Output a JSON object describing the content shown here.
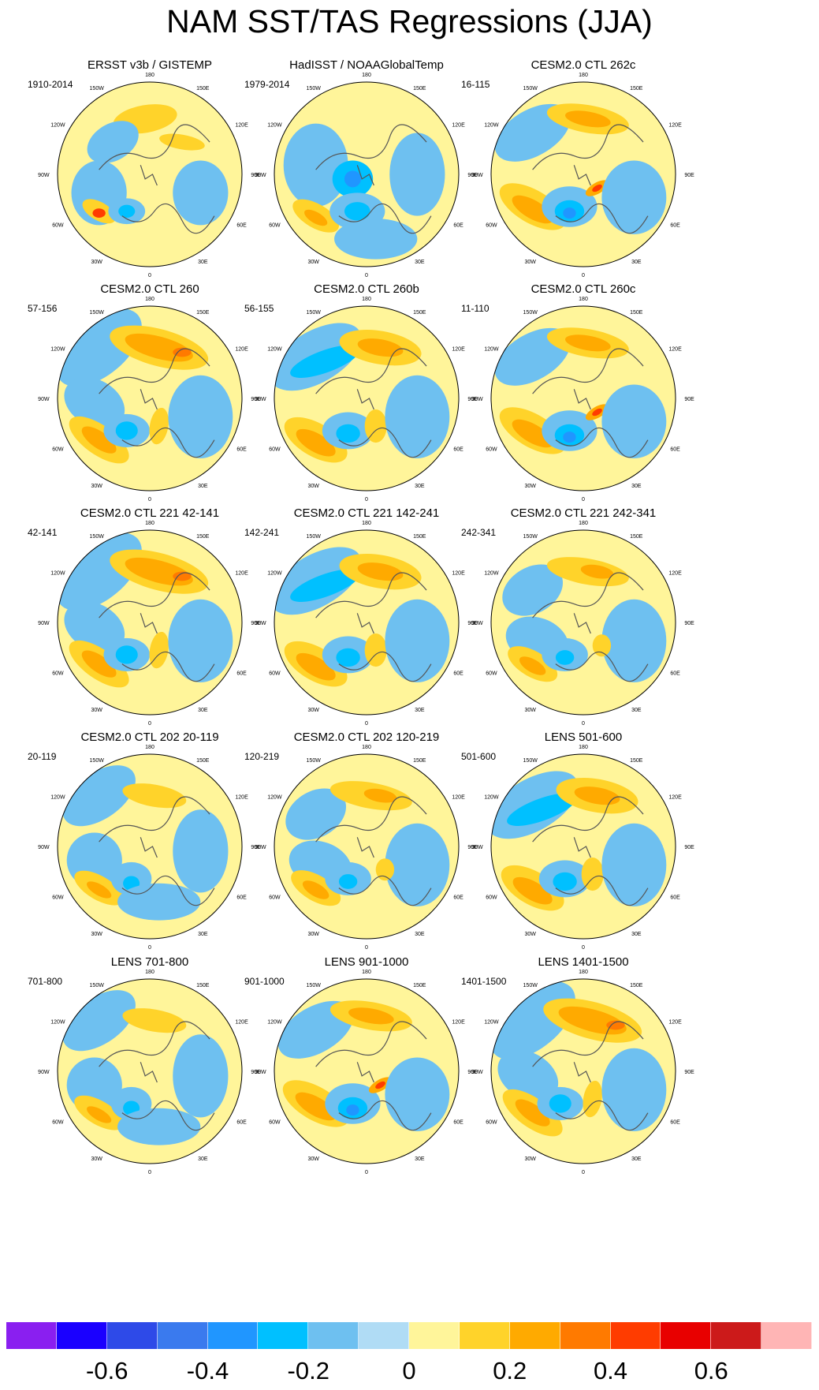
{
  "title": "NAM SST/TAS Regressions (JJA)",
  "lon_labels": [
    "180",
    "150E",
    "120E",
    "90E",
    "60E",
    "30E",
    "0",
    "30W",
    "60W",
    "90W",
    "120W",
    "150W"
  ],
  "panels": [
    {
      "title": "ERSST v3b / GISTEMP",
      "years": "1910-2014",
      "variant": "obs1"
    },
    {
      "title": "HadISST / NOAAGlobalTemp",
      "years": "1979-2014",
      "variant": "obs2"
    },
    {
      "title": "CESM2.0 CTL 262c",
      "years": "16-115",
      "variant": "b"
    },
    {
      "title": "CESM2.0 CTL 260",
      "years": "57-156",
      "variant": "a"
    },
    {
      "title": "CESM2.0 CTL 260b",
      "years": "56-155",
      "variant": "c"
    },
    {
      "title": "CESM2.0 CTL 260c",
      "years": "11-110",
      "variant": "b"
    },
    {
      "title": "CESM2.0 CTL 221 42-141",
      "years": "42-141",
      "variant": "a"
    },
    {
      "title": "CESM2.0 CTL 221 142-241",
      "years": "142-241",
      "variant": "c"
    },
    {
      "title": "CESM2.0 CTL 221 242-341",
      "years": "242-341",
      "variant": "d"
    },
    {
      "title": "CESM2.0 CTL 202 20-119",
      "years": "20-119",
      "variant": "e"
    },
    {
      "title": "CESM2.0 CTL 202 120-219",
      "years": "120-219",
      "variant": "d"
    },
    {
      "title": "LENS 501-600",
      "years": "501-600",
      "variant": "c"
    },
    {
      "title": "LENS 701-800",
      "years": "701-800",
      "variant": "e"
    },
    {
      "title": "LENS 901-1000",
      "years": "901-1000",
      "variant": "b"
    },
    {
      "title": "LENS 1401-1500",
      "years": "1401-1500",
      "variant": "a"
    }
  ],
  "colorbar": {
    "colors": [
      "#8a1ff0",
      "#1a00ff",
      "#2e4ae8",
      "#3a7aee",
      "#2096ff",
      "#00c0ff",
      "#6ec0f0",
      "#b0dcf5",
      "#fff59a",
      "#ffd32a",
      "#ffaa00",
      "#ff7a00",
      "#ff3c00",
      "#e80000",
      "#cc1a1a",
      "#ffb5b5"
    ],
    "tick_labels": [
      "-0.6",
      "-0.4",
      "-0.2",
      "0",
      "0.2",
      "0.4",
      "0.6"
    ]
  }
}
